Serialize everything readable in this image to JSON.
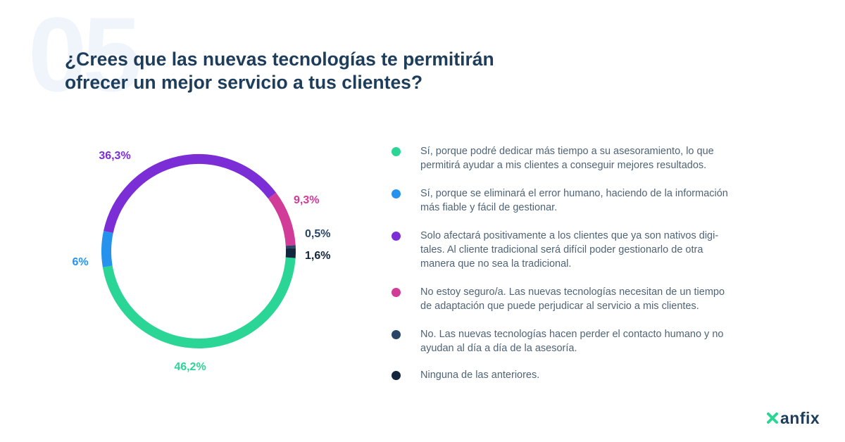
{
  "background_number": "05",
  "title_lines": [
    "¿Crees que las nuevas tecnologías te permitirán",
    "ofrecer un mejor servicio a tus clientes?"
  ],
  "chart_data": {
    "type": "pie",
    "style": "donut",
    "direction": "clockwise-from-right",
    "slices": [
      {
        "label": "46,2%",
        "value": 46.2,
        "color": "#2bd596"
      },
      {
        "label": "6%",
        "value": 6.0,
        "color": "#2593ee"
      },
      {
        "label": "36,3%",
        "value": 36.3,
        "color": "#7b2ed6"
      },
      {
        "label": "9,3%",
        "value": 9.3,
        "color": "#d03c97"
      },
      {
        "label": "0,5%",
        "value": 0.5,
        "color": "#2a4565"
      },
      {
        "label": "1,6%",
        "value": 1.6,
        "color": "#14263c"
      }
    ]
  },
  "legend": [
    {
      "lines": [
        "Sí, porque podré dedicar más tiempo a su asesoramiento, lo que",
        "permitirá ayudar a mis clientes a conseguir mejores resultados."
      ],
      "color": "#2bd596"
    },
    {
      "lines": [
        "Sí, porque se eliminará el error humano, haciendo de la información",
        "más fiable y fácil de gestionar."
      ],
      "color": "#2593ee"
    },
    {
      "lines": [
        "Solo afectará positivamente a los clientes que ya son nativos digi-",
        "tales. Al cliente tradicional será difícil poder gestionarlo de otra",
        "manera que no sea la tradicional."
      ],
      "color": "#7b2ed6"
    },
    {
      "lines": [
        "No estoy seguro/a. Las nuevas tecnologías necesitan de un tiempo",
        "de adaptación que puede perjudicar al servicio a mis clientes."
      ],
      "color": "#d03c97"
    },
    {
      "lines": [
        "No. Las nuevas tecnologías hacen perder el contacto humano y no",
        "ayudan al día a día de la asesoría."
      ],
      "color": "#2a4565"
    },
    {
      "lines": [
        "Ninguna de las anteriores."
      ],
      "color": "#14263c"
    }
  ],
  "logo": {
    "text": "anfix",
    "icon": "anfix-x-icon",
    "color": "#2bd596"
  }
}
